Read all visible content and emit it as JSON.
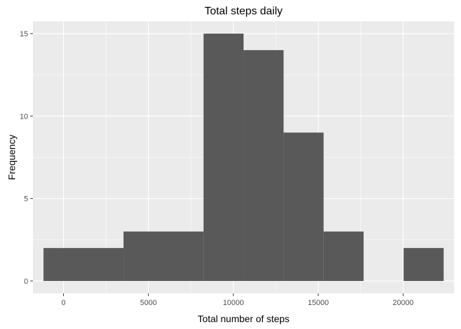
{
  "chart_data": {
    "type": "bar",
    "title": "Total steps daily",
    "xlabel": "Total number of steps",
    "ylabel": "Frequency",
    "xlim": [
      -1800,
      23000
    ],
    "ylim": [
      -0.75,
      15.75
    ],
    "x_ticks": [
      0,
      5000,
      10000,
      15000,
      20000
    ],
    "x_tick_labels": [
      "0",
      "5000",
      "10000",
      "15000",
      "20000"
    ],
    "y_ticks": [
      0,
      5,
      10,
      15
    ],
    "y_tick_labels": [
      "0",
      "5",
      "10",
      "15"
    ],
    "bins": [
      {
        "x0": -1178,
        "x1": 3534,
        "count": 2
      },
      {
        "x0": 3534,
        "x1": 8246,
        "count": 3
      },
      {
        "x0": 8246,
        "x1": 10602,
        "count": 15
      },
      {
        "x0": 10602,
        "x1": 12958,
        "count": 14
      },
      {
        "x0": 12958,
        "x1": 15314,
        "count": 9
      },
      {
        "x0": 15314,
        "x1": 17670,
        "count": 3
      },
      {
        "x0": 17670,
        "x1": 20026,
        "count": 0
      },
      {
        "x0": 20026,
        "x1": 22382,
        "count": 2
      }
    ],
    "grid": true,
    "legend": "none",
    "colors": {
      "panel": "#ebebeb",
      "grid": "#ffffff",
      "bar": "#595959",
      "tick": "#333333"
    }
  }
}
